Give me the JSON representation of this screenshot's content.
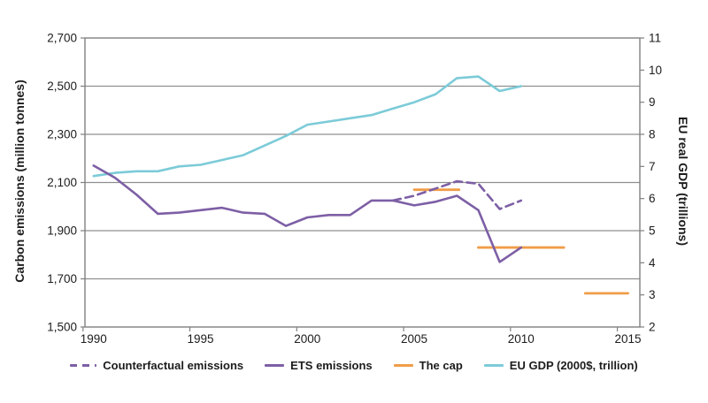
{
  "chart_data": {
    "type": "line",
    "title": "",
    "x_axis": {
      "tick_labels": [
        "1990",
        "1995",
        "2000",
        "2005",
        "2010",
        "2015"
      ],
      "range": [
        1990,
        2015
      ]
    },
    "left_axis": {
      "label": "Carbon emissions (million tonnes)",
      "min": 1500,
      "max": 2700,
      "tick_labels": [
        "2,700",
        "2,500",
        "2,300",
        "2,100",
        "1,900",
        "1,700",
        "1,500"
      ]
    },
    "right_axis": {
      "label": "EU real GDP (trillions)",
      "min": 2,
      "max": 11,
      "tick_labels": [
        "11",
        "10",
        "9",
        "8",
        "7",
        "6",
        "5",
        "4",
        "3",
        "2"
      ]
    },
    "grid": "horizontal-only",
    "legend_position": "bottom",
    "colors": {
      "purple": "#7d5fa5",
      "orange": "#f09d49",
      "cyan": "#7ccbd8",
      "gridline": "#8f8f8f",
      "border": "#808080",
      "text": "#1c1c1c"
    },
    "series": [
      {
        "name": "Counterfactual emissions",
        "axis": "left",
        "style": "dashed",
        "color_key": "purple",
        "points": [
          [
            2004,
            2025
          ],
          [
            2005,
            2045
          ],
          [
            2006,
            2075
          ],
          [
            2007,
            2105
          ],
          [
            2008,
            2095
          ],
          [
            2009,
            1990
          ],
          [
            2010,
            2025
          ]
        ]
      },
      {
        "name": "ETS emissions",
        "axis": "left",
        "style": "solid",
        "color_key": "purple",
        "points": [
          [
            1990,
            2170
          ],
          [
            1991,
            2120
          ],
          [
            1992,
            2050
          ],
          [
            1993,
            1970
          ],
          [
            1994,
            1975
          ],
          [
            1995,
            1985
          ],
          [
            1996,
            1995
          ],
          [
            1997,
            1975
          ],
          [
            1998,
            1970
          ],
          [
            1999,
            1920
          ],
          [
            2000,
            1955
          ],
          [
            2001,
            1965
          ],
          [
            2002,
            1965
          ],
          [
            2003,
            2025
          ],
          [
            2004,
            2025
          ],
          [
            2005,
            2005
          ],
          [
            2006,
            2020
          ],
          [
            2007,
            2045
          ],
          [
            2008,
            1985
          ],
          [
            2009,
            1770
          ],
          [
            2010,
            1830
          ]
        ]
      },
      {
        "name": "The cap",
        "axis": "left",
        "style": "segments",
        "color_key": "orange",
        "segments": [
          {
            "from": 2005,
            "to": 2007.1,
            "value": 2070
          },
          {
            "from": 2008,
            "to": 2012,
            "value": 1830
          },
          {
            "from": 2013,
            "to": 2015,
            "value": 1640
          }
        ]
      },
      {
        "name": "EU GDP (2000$, trillion)",
        "axis": "right",
        "style": "solid",
        "color_key": "cyan",
        "points": [
          [
            1990,
            6.7
          ],
          [
            1991,
            6.8
          ],
          [
            1992,
            6.85
          ],
          [
            1993,
            6.85
          ],
          [
            1994,
            7.0
          ],
          [
            1995,
            7.05
          ],
          [
            1996,
            7.2
          ],
          [
            1997,
            7.35
          ],
          [
            1998,
            7.65
          ],
          [
            1999,
            7.95
          ],
          [
            2000,
            8.3
          ],
          [
            2001,
            8.4
          ],
          [
            2002,
            8.5
          ],
          [
            2003,
            8.6
          ],
          [
            2004,
            8.8
          ],
          [
            2005,
            9.0
          ],
          [
            2006,
            9.25
          ],
          [
            2007,
            9.75
          ],
          [
            2008,
            9.8
          ],
          [
            2009,
            9.35
          ],
          [
            2010,
            9.5
          ]
        ]
      }
    ],
    "legend": [
      {
        "label": "Counterfactual emissions",
        "style": "dashed",
        "color_key": "purple"
      },
      {
        "label": "ETS emissions",
        "style": "solid",
        "color_key": "purple"
      },
      {
        "label": "The cap",
        "style": "solid",
        "color_key": "orange"
      },
      {
        "label": "EU GDP (2000$, trillion)",
        "style": "solid",
        "color_key": "cyan"
      }
    ]
  }
}
